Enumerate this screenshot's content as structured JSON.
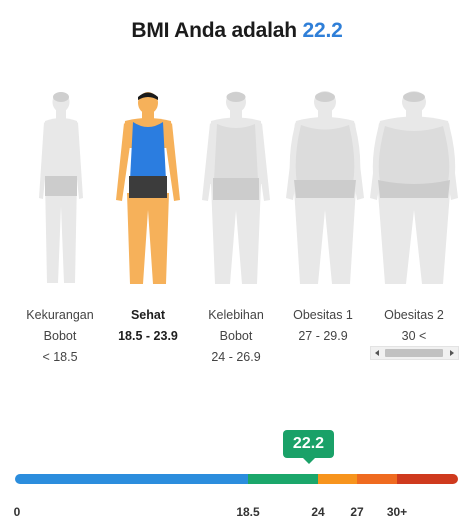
{
  "header": {
    "title_prefix": "BMI Anda adalah",
    "bmi_value": "22.2"
  },
  "categories": [
    {
      "line1": "Kekurangan",
      "line2": "Bobot",
      "range": "< 18.5",
      "active": false
    },
    {
      "line1": "Sehat",
      "line2": "18.5 - 23.9",
      "range": "",
      "active": true
    },
    {
      "line1": "Kelebihan",
      "line2": "Bobot",
      "range": "24 - 26.9",
      "active": false
    },
    {
      "line1": "Obesitas 1",
      "line2": "27 - 29.9",
      "range": "",
      "active": false
    },
    {
      "line1": "Obesitas 2",
      "line2": "30 <",
      "range": "",
      "active": false
    }
  ],
  "scale": {
    "marker_label": "22.2",
    "marker_value": 22.2,
    "ticks": [
      "0",
      "18.5",
      "24",
      "27",
      "30+"
    ],
    "segments": [
      {
        "from": 0,
        "to": 18.5,
        "color": "#2b8ddd"
      },
      {
        "from": 18.5,
        "to": 24,
        "color": "#1ba76b"
      },
      {
        "from": 24,
        "to": 27,
        "color": "#f7941d"
      },
      {
        "from": 27,
        "to": 30,
        "color": "#ef6b20"
      },
      {
        "from": 30,
        "to": 33,
        "color": "#cf3a1e"
      }
    ]
  },
  "colors": {
    "accent": "#2f7fd8",
    "healthy": "#1aa168",
    "figure_inactive": "#e6e6e6",
    "figure_active_skin": "#f6b15a",
    "figure_active_shirt": "#2b7de0"
  }
}
